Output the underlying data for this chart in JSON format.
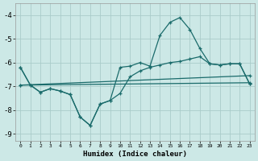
{
  "xlabel": "Humidex (Indice chaleur)",
  "xlim": [
    -0.5,
    23.5
  ],
  "ylim": [
    -9.3,
    -3.5
  ],
  "background_color": "#cce8e6",
  "grid_color": "#aaccca",
  "line_color": "#1a6b6b",
  "x_ticks": [
    0,
    1,
    2,
    3,
    4,
    5,
    6,
    7,
    8,
    9,
    10,
    11,
    12,
    13,
    14,
    15,
    16,
    17,
    18,
    19,
    20,
    21,
    22,
    23
  ],
  "y_ticks": [
    -9,
    -8,
    -7,
    -6,
    -5,
    -4
  ],
  "line1_x": [
    0,
    1,
    2,
    3,
    4,
    5,
    6,
    7,
    8,
    9,
    10,
    11,
    12,
    13,
    14,
    15,
    16,
    17,
    18,
    19,
    20,
    21,
    22,
    23
  ],
  "line1_y": [
    -6.2,
    -6.95,
    -7.25,
    -7.1,
    -7.2,
    -7.35,
    -8.3,
    -8.65,
    -7.75,
    -7.6,
    -6.2,
    -6.15,
    -6.0,
    -6.15,
    -4.85,
    -4.3,
    -4.1,
    -4.6,
    -5.4,
    -6.05,
    -6.1,
    -6.05,
    -6.05,
    -6.9
  ],
  "line2_x": [
    0,
    1,
    2,
    3,
    4,
    5,
    6,
    7,
    8,
    9,
    10,
    11,
    12,
    13,
    14,
    15,
    16,
    17,
    18,
    19,
    20,
    21,
    22,
    23
  ],
  "line2_y": [
    -6.2,
    -6.95,
    -7.25,
    -7.1,
    -7.2,
    -7.35,
    -8.3,
    -8.65,
    -7.75,
    -7.6,
    -7.3,
    -6.6,
    -6.35,
    -6.2,
    -6.1,
    -6.0,
    -5.95,
    -5.85,
    -5.75,
    -6.05,
    -6.1,
    -6.05,
    -6.05,
    -6.9
  ],
  "line3_x": [
    0,
    23
  ],
  "line3_y": [
    -6.95,
    -6.55
  ],
  "line4_x": [
    0,
    23
  ],
  "line4_y": [
    -6.95,
    -6.85
  ]
}
